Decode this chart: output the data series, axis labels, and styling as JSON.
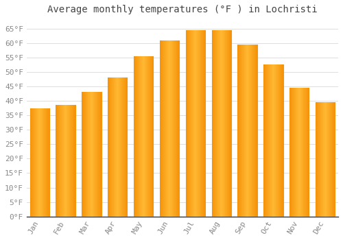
{
  "title": "Average monthly temperatures (°F ) in Lochristi",
  "months": [
    "Jan",
    "Feb",
    "Mar",
    "Apr",
    "May",
    "Jun",
    "Jul",
    "Aug",
    "Sep",
    "Oct",
    "Nov",
    "Dec"
  ],
  "values": [
    37.5,
    38.5,
    43.0,
    48.0,
    55.5,
    61.0,
    64.5,
    64.5,
    59.5,
    52.5,
    44.5,
    39.5
  ],
  "bar_color_center": "#FFB833",
  "bar_color_edge": "#F5930A",
  "background_color": "#FFFFFF",
  "grid_color": "#DDDDDD",
  "ylim": [
    0,
    68
  ],
  "yticks": [
    0,
    5,
    10,
    15,
    20,
    25,
    30,
    35,
    40,
    45,
    50,
    55,
    60,
    65
  ],
  "title_fontsize": 10,
  "tick_fontsize": 8,
  "title_color": "#444444",
  "tick_color": "#888888",
  "bar_width": 0.75
}
